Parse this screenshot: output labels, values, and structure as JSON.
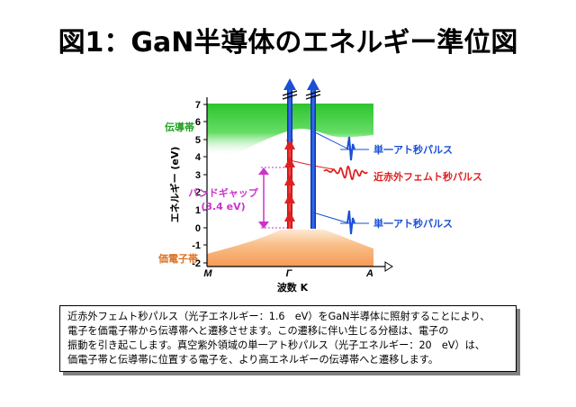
{
  "title": "図1：GaN半導体のエネルギー準位図",
  "axes": {
    "y_label": "エネルギー (eV)",
    "y_ticks": [
      "7",
      "6",
      "5",
      "4",
      "3",
      "2",
      "1",
      "0",
      "-1",
      "-2"
    ],
    "x_label": "波数 K",
    "x_ticks": [
      "M",
      "Γ",
      "A"
    ]
  },
  "bands": {
    "conduction": "伝導帯",
    "valence": "価電子帯"
  },
  "gap": {
    "label": "バンドギャップ",
    "value": "(3.4 eV)"
  },
  "pulses": {
    "attosecond_upper": "単一アト秒パルス",
    "femtosecond": "近赤外フェムト秒パルス",
    "attosecond_lower": "単一アト秒パルス"
  },
  "colors": {
    "conduction_band": "#33cc33",
    "valence_band": "#f4a460",
    "attosecond": "#1a4fd6",
    "femtosecond": "#e02020",
    "gap_arrow": "#cc33cc"
  },
  "caption": [
    "近赤外フェムト秒パルス（光子エネルギー：1.6　eV）をGaN半導体に照射することにより、",
    "電子を価電子帯から伝導帯へと遷移させます。この遷移に伴い生じる分極は、電子の",
    "振動を引き起こします。真空紫外領域の単一アト秒パルス（光子エネルギー：20　eV）は、",
    "価電子帯と伝導帯に位置する電子を、より高エネルギーの伝導帯へと遷移します。"
  ]
}
